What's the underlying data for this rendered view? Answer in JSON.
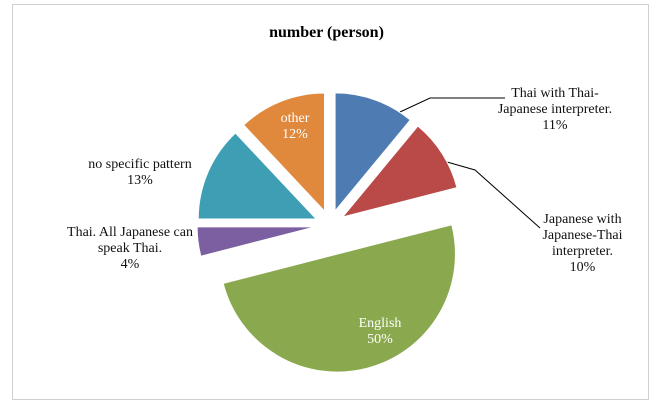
{
  "chart_data": {
    "type": "pie",
    "title": "number (person)",
    "categories": [
      "Thai with Thai-Japanese interpreter.",
      "Japanese with Japanese-Thai interpreter.",
      "English",
      "Thai. All Japanese can speak Thai.",
      "no specific pattern",
      "other"
    ],
    "values": [
      11,
      10,
      50,
      4,
      13,
      12
    ],
    "value_labels": [
      "11%",
      "10%",
      "50%",
      "4%",
      "13%",
      "12%"
    ],
    "colors": [
      "#4f7bb3",
      "#b94a48",
      "#8aa94f",
      "#7b5fa0",
      "#3e9fb4",
      "#e0883c"
    ]
  }
}
